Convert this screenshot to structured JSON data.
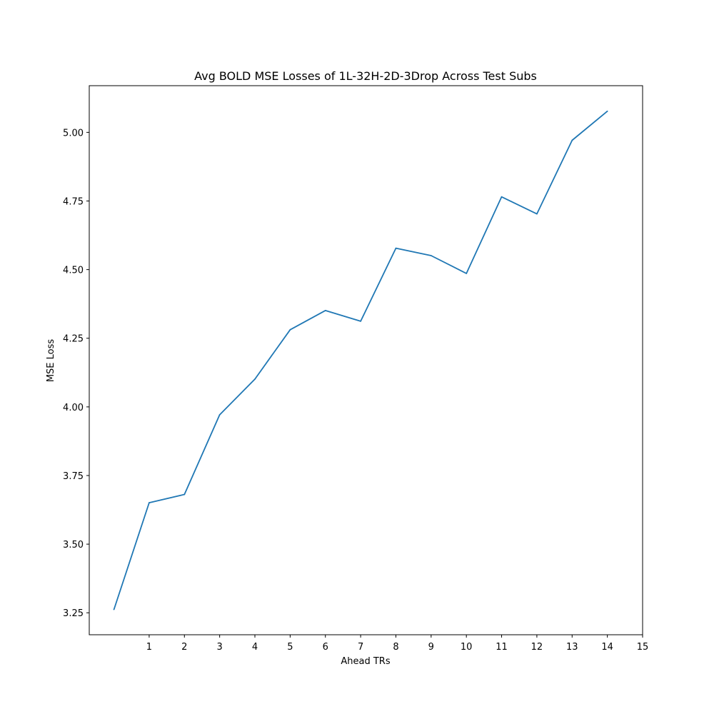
{
  "chart_data": {
    "type": "line",
    "title": "Avg BOLD MSE Losses of 1L-32H-2D-3Drop Across Test Subs",
    "xlabel": "Ahead TRs",
    "ylabel": "MSE Loss",
    "xlim": [
      -0.7,
      15.0
    ],
    "ylim": [
      3.17,
      5.17
    ],
    "xticks": [
      1,
      2,
      3,
      4,
      5,
      6,
      7,
      8,
      9,
      10,
      11,
      12,
      13,
      14,
      15
    ],
    "xtick_labels": [
      "1",
      "2",
      "3",
      "4",
      "5",
      "6",
      "7",
      "8",
      "9",
      "10",
      "11",
      "12",
      "13",
      "14",
      "15"
    ],
    "yticks": [
      3.25,
      3.5,
      3.75,
      4.0,
      4.25,
      4.5,
      4.75,
      5.0
    ],
    "ytick_labels": [
      "3.25",
      "3.50",
      "3.75",
      "4.00",
      "4.25",
      "4.50",
      "4.75",
      "5.00"
    ],
    "grid": false,
    "series": [
      {
        "color": "#1f77b4",
        "x": [
          0,
          1,
          2,
          3,
          4,
          5,
          6,
          7,
          8,
          9,
          10,
          11,
          12,
          13,
          14
        ],
        "y": [
          3.262,
          3.651,
          3.681,
          3.971,
          4.101,
          4.281,
          4.351,
          4.312,
          4.578,
          4.551,
          4.486,
          4.765,
          4.703,
          4.971,
          5.077
        ]
      }
    ]
  }
}
